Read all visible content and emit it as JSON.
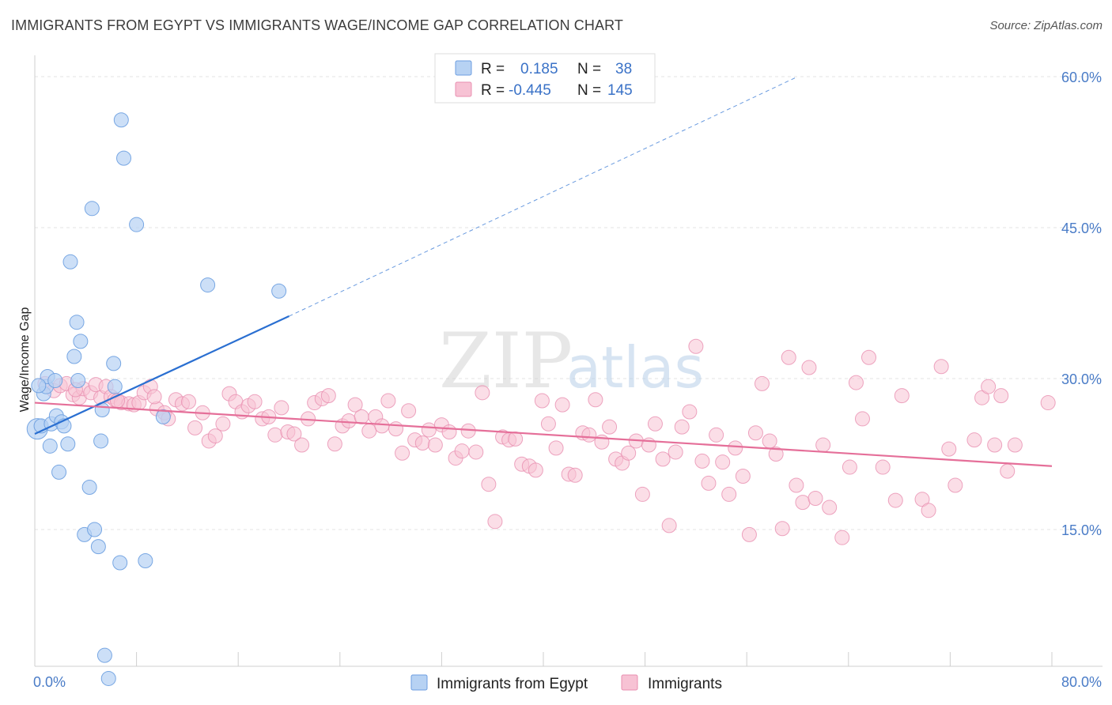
{
  "title": "IMMIGRANTS FROM EGYPT VS IMMIGRANTS WAGE/INCOME GAP CORRELATION CHART",
  "source": "Source: ZipAtlas.com",
  "watermark": {
    "zip": "ZIP",
    "atlas": "atlas"
  },
  "colors": {
    "egypt_fill": "#b7d2f3",
    "egypt_stroke": "#6c9ee0",
    "egypt_line": "#2a6fd1",
    "imm_fill": "#f7c2d4",
    "imm_stroke": "#e98fb0",
    "imm_line": "#e56f99",
    "tick_label": "#4a7cc7",
    "grid": "#e3e3e3"
  },
  "legend": {
    "rows": [
      {
        "r_label": "R =",
        "r_value": "0.185",
        "n_label": "N =",
        "n_value": "38"
      },
      {
        "r_label": "R =",
        "r_value": "-0.445",
        "n_label": "N =",
        "n_value": "145"
      }
    ]
  },
  "bottom_legend": [
    "Immigrants from Egypt",
    "Immigrants"
  ],
  "chart_data": {
    "type": "scatter",
    "xlabel": "",
    "ylabel": "Wage/Income Gap",
    "xlim": [
      0,
      80
    ],
    "ylim": [
      0,
      65
    ],
    "x_tick_labels": [
      "0.0%",
      "80.0%"
    ],
    "y_ticks": [
      15,
      30,
      45,
      60
    ],
    "y_tick_labels": [
      "15.0%",
      "30.0%",
      "45.0%",
      "60.0%"
    ],
    "grid": true,
    "series": [
      {
        "name": "Immigrants from Egypt",
        "r": 0.185,
        "n": 38,
        "trend": {
          "x0": 0,
          "y0": 24.5,
          "x1": 20,
          "y1": 36.2,
          "dash_to_x": 60,
          "dash_to_y": 60
        },
        "points": [
          [
            0.2,
            25.0
          ],
          [
            0.5,
            25.3
          ],
          [
            0.7,
            28.5
          ],
          [
            0.9,
            29.2
          ],
          [
            1.0,
            30.2
          ],
          [
            1.2,
            23.3
          ],
          [
            1.3,
            25.5
          ],
          [
            1.6,
            29.8
          ],
          [
            1.7,
            26.3
          ],
          [
            1.9,
            20.7
          ],
          [
            2.1,
            25.7
          ],
          [
            2.3,
            25.3
          ],
          [
            2.6,
            23.5
          ],
          [
            2.8,
            41.6
          ],
          [
            3.1,
            32.2
          ],
          [
            3.3,
            35.6
          ],
          [
            3.4,
            29.8
          ],
          [
            3.6,
            33.7
          ],
          [
            3.9,
            14.5
          ],
          [
            4.3,
            19.2
          ],
          [
            4.5,
            46.9
          ],
          [
            4.7,
            15.0
          ],
          [
            5.0,
            13.3
          ],
          [
            5.2,
            23.8
          ],
          [
            5.3,
            26.9
          ],
          [
            5.5,
            2.5
          ],
          [
            5.8,
            0.2
          ],
          [
            6.2,
            31.5
          ],
          [
            6.3,
            29.2
          ],
          [
            6.7,
            11.7
          ],
          [
            6.8,
            55.7
          ],
          [
            7.0,
            51.9
          ],
          [
            8.0,
            45.3
          ],
          [
            8.7,
            11.9
          ],
          [
            10.1,
            26.2
          ],
          [
            13.6,
            39.3
          ],
          [
            19.2,
            38.7
          ],
          [
            0.3,
            29.3
          ]
        ]
      },
      {
        "name": "Immigrants",
        "r": -0.445,
        "n": 145,
        "trend": {
          "x0": 0,
          "y0": 27.6,
          "x1": 80,
          "y1": 21.3
        },
        "points": [
          [
            0.8,
            29.5
          ],
          [
            1.5,
            28.8
          ],
          [
            2.0,
            29.3
          ],
          [
            2.5,
            29.5
          ],
          [
            3.0,
            28.4
          ],
          [
            3.5,
            28.1
          ],
          [
            3.8,
            29.0
          ],
          [
            4.4,
            28.6
          ],
          [
            4.8,
            29.4
          ],
          [
            5.2,
            28.1
          ],
          [
            5.6,
            29.2
          ],
          [
            6.0,
            28.2
          ],
          [
            6.3,
            27.9
          ],
          [
            6.8,
            27.6
          ],
          [
            7.4,
            27.5
          ],
          [
            7.8,
            27.4
          ],
          [
            8.2,
            27.6
          ],
          [
            8.6,
            28.6
          ],
          [
            9.1,
            29.2
          ],
          [
            9.6,
            27.0
          ],
          [
            10.2,
            26.6
          ],
          [
            10.5,
            26.0
          ],
          [
            11.1,
            27.9
          ],
          [
            11.6,
            27.5
          ],
          [
            12.1,
            27.7
          ],
          [
            12.6,
            25.1
          ],
          [
            13.2,
            26.6
          ],
          [
            13.7,
            23.8
          ],
          [
            14.2,
            24.3
          ],
          [
            14.8,
            25.5
          ],
          [
            15.3,
            28.5
          ],
          [
            15.8,
            27.7
          ],
          [
            16.3,
            26.7
          ],
          [
            16.8,
            27.3
          ],
          [
            17.3,
            27.7
          ],
          [
            17.9,
            26.0
          ],
          [
            18.4,
            26.2
          ],
          [
            18.9,
            24.4
          ],
          [
            19.4,
            27.1
          ],
          [
            19.9,
            24.7
          ],
          [
            20.4,
            24.5
          ],
          [
            21.0,
            23.4
          ],
          [
            21.5,
            26.0
          ],
          [
            22.0,
            27.6
          ],
          [
            22.6,
            28.0
          ],
          [
            23.1,
            28.3
          ],
          [
            23.6,
            23.5
          ],
          [
            24.2,
            25.3
          ],
          [
            24.7,
            25.8
          ],
          [
            25.2,
            27.4
          ],
          [
            25.7,
            26.2
          ],
          [
            26.3,
            24.8
          ],
          [
            26.8,
            26.2
          ],
          [
            27.3,
            25.3
          ],
          [
            27.8,
            27.8
          ],
          [
            28.4,
            25.0
          ],
          [
            28.9,
            22.6
          ],
          [
            29.4,
            26.8
          ],
          [
            29.9,
            23.9
          ],
          [
            30.5,
            23.6
          ],
          [
            31.0,
            24.9
          ],
          [
            31.5,
            23.4
          ],
          [
            32.0,
            25.4
          ],
          [
            32.6,
            24.7
          ],
          [
            33.1,
            22.1
          ],
          [
            33.6,
            22.8
          ],
          [
            34.1,
            24.8
          ],
          [
            34.7,
            22.7
          ],
          [
            35.2,
            28.6
          ],
          [
            35.7,
            19.5
          ],
          [
            36.2,
            15.8
          ],
          [
            36.8,
            24.2
          ],
          [
            37.3,
            23.9
          ],
          [
            37.8,
            24.0
          ],
          [
            38.3,
            21.5
          ],
          [
            38.9,
            21.3
          ],
          [
            39.4,
            20.9
          ],
          [
            39.9,
            27.8
          ],
          [
            40.4,
            25.5
          ],
          [
            41.0,
            23.1
          ],
          [
            41.5,
            27.4
          ],
          [
            42.0,
            20.5
          ],
          [
            42.5,
            20.4
          ],
          [
            43.1,
            24.6
          ],
          [
            43.6,
            24.4
          ],
          [
            44.1,
            27.9
          ],
          [
            44.6,
            23.7
          ],
          [
            45.2,
            25.2
          ],
          [
            45.7,
            22.0
          ],
          [
            46.2,
            21.6
          ],
          [
            46.7,
            22.6
          ],
          [
            47.3,
            23.8
          ],
          [
            47.8,
            18.5
          ],
          [
            48.3,
            23.4
          ],
          [
            48.8,
            25.5
          ],
          [
            49.4,
            22.0
          ],
          [
            49.9,
            15.4
          ],
          [
            50.4,
            22.7
          ],
          [
            50.9,
            25.2
          ],
          [
            51.5,
            26.7
          ],
          [
            52.0,
            33.2
          ],
          [
            52.5,
            21.8
          ],
          [
            53.0,
            19.6
          ],
          [
            53.6,
            24.4
          ],
          [
            54.1,
            21.7
          ],
          [
            54.6,
            18.5
          ],
          [
            55.1,
            23.1
          ],
          [
            55.7,
            20.3
          ],
          [
            56.2,
            14.5
          ],
          [
            56.7,
            24.6
          ],
          [
            57.2,
            29.5
          ],
          [
            57.8,
            23.8
          ],
          [
            58.3,
            22.5
          ],
          [
            58.8,
            15.1
          ],
          [
            59.3,
            32.1
          ],
          [
            59.9,
            19.4
          ],
          [
            60.4,
            17.7
          ],
          [
            60.9,
            31.1
          ],
          [
            61.4,
            18.1
          ],
          [
            62.0,
            23.4
          ],
          [
            62.5,
            17.2
          ],
          [
            63.5,
            14.2
          ],
          [
            64.1,
            21.2
          ],
          [
            64.6,
            29.6
          ],
          [
            65.1,
            26.0
          ],
          [
            65.6,
            32.1
          ],
          [
            66.7,
            21.2
          ],
          [
            67.7,
            17.9
          ],
          [
            68.2,
            28.3
          ],
          [
            69.8,
            18.0
          ],
          [
            70.3,
            16.9
          ],
          [
            71.3,
            31.2
          ],
          [
            71.9,
            23.0
          ],
          [
            72.4,
            19.4
          ],
          [
            73.9,
            23.9
          ],
          [
            74.5,
            28.1
          ],
          [
            75.0,
            29.2
          ],
          [
            75.5,
            23.4
          ],
          [
            76.0,
            28.3
          ],
          [
            76.5,
            20.8
          ],
          [
            77.1,
            23.4
          ],
          [
            79.7,
            27.6
          ],
          [
            6.5,
            27.8
          ],
          [
            9.4,
            28.2
          ],
          [
            3.2,
            28.9
          ]
        ]
      }
    ]
  }
}
